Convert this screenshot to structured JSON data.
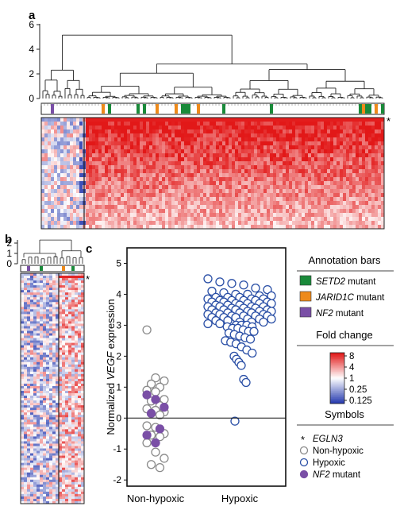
{
  "panel_a": {
    "label": "a",
    "yticks": [
      "0",
      "2",
      "4",
      "6"
    ],
    "mutations": [
      {
        "type": "nf2",
        "index": 3
      },
      {
        "type": "jarid1c",
        "index": 19
      },
      {
        "type": "setd2",
        "index": 21
      },
      {
        "type": "setd2",
        "index": 30
      },
      {
        "type": "setd2",
        "index": 32
      },
      {
        "type": "jarid1c",
        "index": 36
      },
      {
        "type": "jarid1c",
        "index": 42
      },
      {
        "type": "setd2",
        "index": 44
      },
      {
        "type": "setd2",
        "index": 45
      },
      {
        "type": "setd2",
        "index": 46
      },
      {
        "type": "jarid1c",
        "index": 49
      },
      {
        "type": "setd2",
        "index": 57
      },
      {
        "type": "setd2",
        "index": 72
      },
      {
        "type": "setd2",
        "index": 100
      },
      {
        "type": "jarid1c",
        "index": 101
      },
      {
        "type": "setd2",
        "index": 102
      },
      {
        "type": "setd2",
        "index": 103
      },
      {
        "type": "jarid1c",
        "index": 105
      },
      {
        "type": "setd2",
        "index": 107
      }
    ]
  },
  "panel_b": {
    "label": "b",
    "yticks": [
      "0",
      "1",
      "2"
    ]
  },
  "panel_c": {
    "label": "c",
    "ylabel_prefix": "Normalized ",
    "ylabel_gene": "VEGF",
    "ylabel_suffix": " expression"
  },
  "egln3_marker": "*",
  "legend": {
    "annotation_title": "Annotation bars",
    "annotation_items": [
      {
        "gene": "SETD2",
        "suffix": " mutant",
        "color": "#1a8a3a"
      },
      {
        "gene": "JARID1C",
        "suffix": " mutant",
        "color": "#ee8a1a"
      },
      {
        "gene": "NF2",
        "suffix": " mutant",
        "color": "#7a4fa6"
      }
    ],
    "fold_title": "Fold change",
    "fold_labels": [
      "8",
      "4",
      "1",
      "0.25",
      "0.125"
    ],
    "fold_colors": [
      "#e42020",
      "#f4a0a0",
      "#ffffff",
      "#9aa8e0",
      "#2a40b0"
    ],
    "symbols_title": "Symbols",
    "symbol_items": [
      {
        "kind": "star",
        "glyph": "*",
        "label": "EGLN3"
      },
      {
        "kind": "open-gray",
        "label": "Non-hypoxic"
      },
      {
        "kind": "open-blue",
        "label": "Hypoxic"
      },
      {
        "kind": "filled-purple",
        "label": "NF2 mutant"
      }
    ]
  },
  "chart_data": {
    "type": "scatter",
    "categories": [
      "Non-hypoxic",
      "Hypoxic"
    ],
    "ylim": [
      -2.2,
      5.5
    ],
    "yticks": [
      -2,
      -1,
      0,
      1,
      2,
      3,
      4,
      5
    ],
    "baseline": 0,
    "colors": {
      "non_hypoxic": "#8a8a8a",
      "hypoxic": "#2a4fa6",
      "nf2": "#7a4fa6"
    },
    "series": [
      {
        "name": "Non-hypoxic",
        "category": "Non-hypoxic",
        "values": [
          2.85,
          1.3,
          1.2,
          1.1,
          1.0,
          0.9,
          0.85,
          0.6,
          0.55,
          0.4,
          0.3,
          0.25,
          0.2,
          0.15,
          0.1,
          -0.25,
          -0.3,
          -0.5,
          -0.55,
          -0.6,
          -0.8,
          -1.1,
          -1.3,
          -1.5,
          -1.6
        ]
      },
      {
        "name": "NF2 mutant",
        "category": "Non-hypoxic",
        "values": [
          0.75,
          0.6,
          0.35,
          0.15,
          -0.35,
          -0.55,
          -0.8
        ]
      },
      {
        "name": "Hypoxic",
        "category": "Hypoxic",
        "values": [
          4.5,
          4.4,
          4.35,
          4.3,
          4.2,
          4.15,
          4.1,
          4.05,
          4.0,
          4.0,
          3.95,
          3.95,
          3.9,
          3.9,
          3.9,
          3.85,
          3.85,
          3.85,
          3.8,
          3.8,
          3.8,
          3.8,
          3.75,
          3.75,
          3.75,
          3.7,
          3.7,
          3.7,
          3.7,
          3.65,
          3.65,
          3.65,
          3.6,
          3.6,
          3.6,
          3.6,
          3.55,
          3.55,
          3.55,
          3.5,
          3.5,
          3.5,
          3.5,
          3.45,
          3.45,
          3.45,
          3.4,
          3.4,
          3.4,
          3.4,
          3.35,
          3.35,
          3.35,
          3.3,
          3.3,
          3.3,
          3.3,
          3.25,
          3.25,
          3.25,
          3.2,
          3.2,
          3.2,
          3.15,
          3.15,
          3.1,
          3.1,
          3.1,
          3.05,
          3.05,
          3.0,
          3.0,
          3.0,
          2.95,
          2.95,
          2.9,
          2.9,
          2.85,
          2.8,
          2.8,
          2.75,
          2.7,
          2.65,
          2.6,
          2.55,
          2.5,
          2.45,
          2.4,
          2.3,
          2.2,
          2.1,
          2.0,
          1.9,
          1.8,
          1.7,
          1.25,
          1.15,
          -0.1
        ]
      }
    ]
  }
}
